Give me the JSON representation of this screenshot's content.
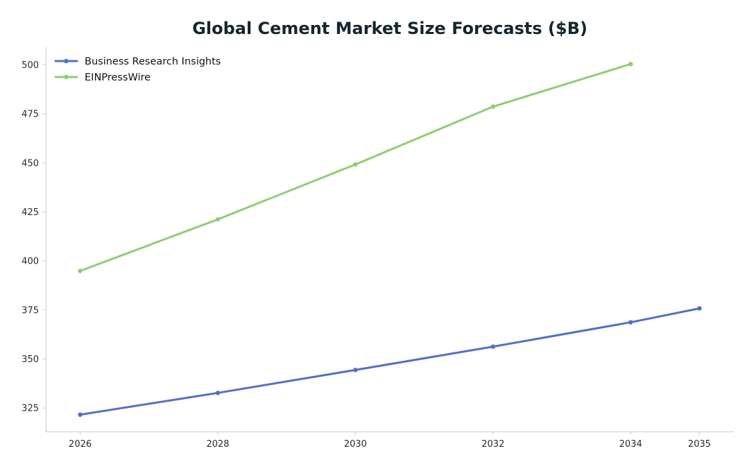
{
  "chart_data": {
    "type": "line",
    "title": "Global Cement Market Size Forecasts ($B)",
    "xlabel": "",
    "ylabel": "",
    "x_ticks": [
      "2026",
      "2028",
      "2030",
      "2032",
      "2034",
      "2035"
    ],
    "y_ticks": [
      325,
      350,
      375,
      400,
      425,
      450,
      475,
      500
    ],
    "xlim": [
      2025.5,
      2035.5
    ],
    "ylim": [
      313,
      509
    ],
    "grid": false,
    "legend_position": "top-left",
    "series": [
      {
        "name": "Business Research Insights",
        "color": "#5470c6",
        "points": [
          {
            "x": 2026,
            "y": 321.6
          },
          {
            "x": 2028,
            "y": 332.7
          },
          {
            "x": 2030,
            "y": 344.4
          },
          {
            "x": 2032,
            "y": 356.3
          },
          {
            "x": 2034,
            "y": 368.7
          },
          {
            "x": 2035,
            "y": 375.8
          }
        ]
      },
      {
        "name": "EINPressWire",
        "color": "#91cc75",
        "points": [
          {
            "x": 2026,
            "y": 394.9
          },
          {
            "x": 2028,
            "y": 421.2
          },
          {
            "x": 2030,
            "y": 449.2
          },
          {
            "x": 2032,
            "y": 478.7
          },
          {
            "x": 2034,
            "y": 500.4
          }
        ]
      }
    ]
  }
}
